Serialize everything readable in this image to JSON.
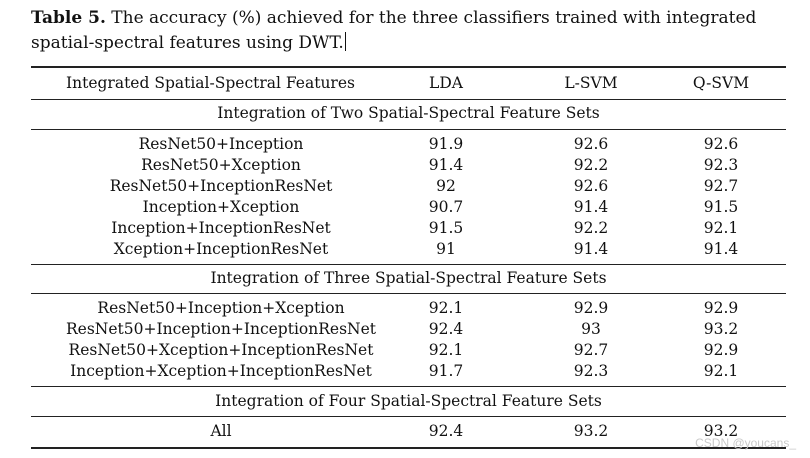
{
  "caption": {
    "label": "Table 5.",
    "text": " The accuracy (%) achieved for the three classifiers trained with integrated spatial-spectral features using DWT."
  },
  "table": {
    "headers": [
      "Integrated Spatial-Spectral Features",
      "LDA",
      "L-SVM",
      "Q-SVM"
    ],
    "sections": [
      {
        "title": "Integration of Two Spatial-Spectral Feature Sets",
        "rows": [
          [
            "ResNet50+Inception",
            "91.9",
            "92.6",
            "92.6"
          ],
          [
            "ResNet50+Xception",
            "91.4",
            "92.2",
            "92.3"
          ],
          [
            "ResNet50+InceptionResNet",
            "92",
            "92.6",
            "92.7"
          ],
          [
            "Inception+Xception",
            "90.7",
            "91.4",
            "91.5"
          ],
          [
            "Inception+InceptionResNet",
            "91.5",
            "92.2",
            "92.1"
          ],
          [
            "Xception+InceptionResNet",
            "91",
            "91.4",
            "91.4"
          ]
        ]
      },
      {
        "title": "Integration of Three Spatial-Spectral Feature Sets",
        "rows": [
          [
            "ResNet50+Inception+Xception",
            "92.1",
            "92.9",
            "92.9"
          ],
          [
            "ResNet50+Inception+InceptionResNet",
            "92.4",
            "93",
            "93.2"
          ],
          [
            "ResNet50+Xception+InceptionResNet",
            "92.1",
            "92.7",
            "92.9"
          ],
          [
            "Inception+Xception+InceptionResNet",
            "91.7",
            "92.3",
            "92.1"
          ]
        ]
      },
      {
        "title": "Integration of Four Spatial-Spectral Feature Sets",
        "rows": [
          [
            "All",
            "92.4",
            "93.2",
            "93.2"
          ]
        ]
      }
    ]
  },
  "watermark": "CSDN @youcans_"
}
